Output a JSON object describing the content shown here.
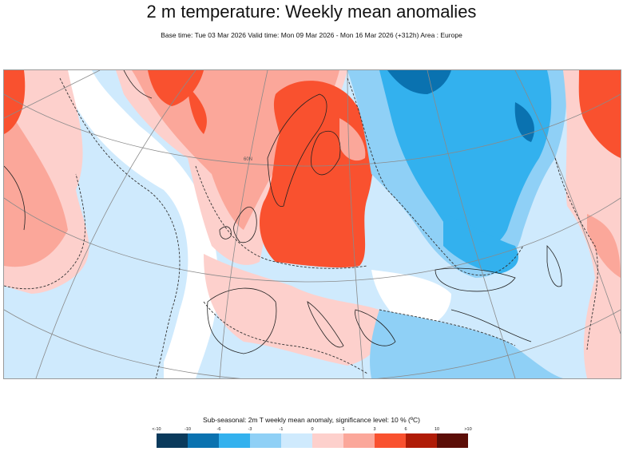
{
  "header": {
    "title": "2 m temperature: Weekly mean anomalies",
    "subtitle": "Base time: Tue 03 Mar 2026 Valid time: Mon 09 Mar 2026 - Mon 16 Mar 2026 (+312h) Area : Europe"
  },
  "map": {
    "region": "Europe",
    "variable": "2 m temperature weekly mean anomaly",
    "grid_label": "60N"
  },
  "legend": {
    "title": "Sub-seasonal: 2m T weekly mean anomaly, significance level: 10 % (ºC)",
    "tick_labels": [
      "<-10",
      "-10",
      "-6",
      "-3",
      "-1",
      "0",
      "1",
      "3",
      "6",
      "10",
      ">10"
    ],
    "colors": [
      "#0a3a5c",
      "#0a72b0",
      "#33b1ee",
      "#8fd0f6",
      "#cfeafd",
      "#fdd0cc",
      "#fba79a",
      "#f9512f",
      "#b01c07",
      "#5c0e07"
    ]
  }
}
